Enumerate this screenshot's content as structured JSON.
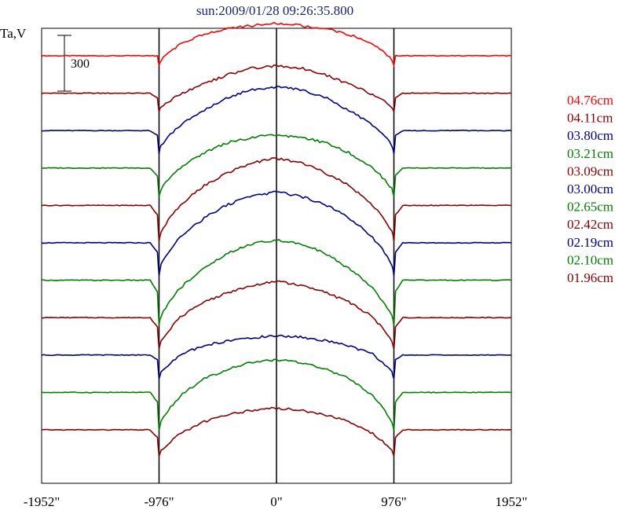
{
  "chart_data": {
    "type": "line",
    "title": "sun:2009/01/28 09:26:35.800",
    "ylabel": "Ta,V",
    "xlabel": "",
    "x_ticks": [
      "-1952\"",
      "-976\"",
      "0\"",
      "976\"",
      "1952\""
    ],
    "x_tick_values": [
      -1952,
      -976,
      0,
      976,
      1952
    ],
    "xlim": [
      -1952,
      1952
    ],
    "vertical_lines_at": [
      -976,
      0,
      976
    ],
    "scale_bar": {
      "label": "300",
      "value": 300,
      "units": "V"
    },
    "legend_position": "right",
    "series": [
      {
        "name": "04.76cm",
        "color": "#ff0000",
        "offset_y": 22,
        "x": [
          -1952,
          -1050,
          -990,
          -976,
          -960,
          -800,
          -600,
          -400,
          -200,
          0,
          200,
          400,
          600,
          800,
          960,
          976,
          990,
          1050,
          1952
        ],
        "values": [
          0,
          0,
          0,
          -10,
          -8,
          2,
          8,
          12,
          14,
          16,
          14,
          12,
          8,
          2,
          -8,
          -10,
          0,
          0,
          0
        ]
      },
      {
        "name": "04.11cm",
        "color": "#8b0000",
        "offset_y": 18,
        "x": [
          -1952,
          -1050,
          -990,
          -976,
          -960,
          -800,
          -600,
          -400,
          -200,
          0,
          200,
          400,
          600,
          800,
          960,
          976,
          990,
          1050,
          1952
        ],
        "values": [
          0,
          0,
          -5,
          -20,
          -18,
          -10,
          -2,
          6,
          12,
          14,
          12,
          6,
          -2,
          -10,
          -18,
          -20,
          -5,
          0,
          0
        ]
      },
      {
        "name": "03.80cm",
        "color": "#00008b",
        "offset_y": 36,
        "x": [
          -1952,
          -1050,
          -990,
          -976,
          -960,
          -800,
          -600,
          -400,
          -200,
          0,
          200,
          400,
          600,
          800,
          960,
          976,
          990,
          1050,
          1952
        ],
        "values": [
          0,
          0,
          -5,
          -25,
          -22,
          -12,
          -2,
          8,
          14,
          16,
          14,
          8,
          -2,
          -12,
          -22,
          -25,
          -5,
          0,
          0
        ]
      },
      {
        "name": "03.21cm",
        "color": "#008000",
        "offset_y": 25,
        "x": [
          -1952,
          -1050,
          -990,
          -976,
          -960,
          -800,
          -600,
          -400,
          -200,
          0,
          200,
          400,
          600,
          800,
          960,
          976,
          990,
          1050,
          1952
        ],
        "values": [
          0,
          0,
          -8,
          -30,
          -26,
          -12,
          0,
          8,
          12,
          14,
          12,
          8,
          0,
          -12,
          -26,
          -30,
          -8,
          0,
          0
        ]
      },
      {
        "name": "03.09cm",
        "color": "#8b0000",
        "offset_y": 38,
        "x": [
          -1952,
          -1050,
          -990,
          -976,
          -960,
          -800,
          -600,
          -400,
          -200,
          0,
          200,
          400,
          600,
          800,
          960,
          976,
          990,
          1050,
          1952
        ],
        "values": [
          0,
          0,
          -10,
          -38,
          -34,
          -18,
          -4,
          6,
          14,
          18,
          14,
          6,
          -4,
          -18,
          -34,
          -38,
          -10,
          0,
          0
        ]
      },
      {
        "name": "03.00cm",
        "color": "#00008b",
        "offset_y": 43,
        "x": [
          -1952,
          -1050,
          -990,
          -976,
          -960,
          -800,
          -600,
          -400,
          -200,
          0,
          200,
          400,
          600,
          800,
          960,
          976,
          990,
          1050,
          1952
        ],
        "values": [
          0,
          0,
          -10,
          -35,
          -30,
          -15,
          -2,
          8,
          14,
          18,
          14,
          8,
          -2,
          -15,
          -30,
          -35,
          -10,
          0,
          0
        ]
      },
      {
        "name": "02.65cm",
        "color": "#008000",
        "offset_y": 25,
        "x": [
          -1952,
          -1050,
          -990,
          -976,
          -960,
          -800,
          -600,
          -400,
          -200,
          0,
          200,
          400,
          600,
          800,
          960,
          976,
          990,
          1050,
          1952
        ],
        "values": [
          0,
          0,
          -12,
          -48,
          -42,
          -20,
          -4,
          10,
          18,
          22,
          18,
          10,
          -4,
          -20,
          -42,
          -48,
          -12,
          0,
          0
        ]
      },
      {
        "name": "02.42cm",
        "color": "#8b0000",
        "offset_y": 22,
        "x": [
          -1952,
          -1050,
          -990,
          -976,
          -960,
          -800,
          -600,
          -400,
          -200,
          0,
          200,
          400,
          600,
          800,
          960,
          976,
          990,
          1050,
          1952
        ],
        "values": [
          0,
          0,
          -10,
          -33,
          -28,
          -10,
          2,
          10,
          16,
          20,
          16,
          10,
          2,
          -10,
          -28,
          -33,
          -10,
          0,
          0
        ]
      },
      {
        "name": "02.19cm",
        "color": "#00008b",
        "offset_y": 12,
        "x": [
          -1952,
          -1050,
          -990,
          -976,
          -960,
          -800,
          -600,
          -400,
          -200,
          0,
          200,
          400,
          600,
          800,
          960,
          976,
          990,
          1050,
          1952
        ],
        "values": [
          0,
          0,
          -5,
          -25,
          -20,
          -5,
          2,
          6,
          9,
          10,
          9,
          6,
          2,
          -5,
          -20,
          -25,
          -5,
          0,
          0
        ]
      },
      {
        "name": "02.10cm",
        "color": "#008000",
        "offset_y": 22,
        "x": [
          -1952,
          -1050,
          -990,
          -976,
          -960,
          -800,
          -600,
          -400,
          -200,
          0,
          200,
          400,
          600,
          800,
          960,
          976,
          990,
          1050,
          1952
        ],
        "values": [
          0,
          0,
          -10,
          -40,
          -34,
          -14,
          0,
          8,
          14,
          16,
          14,
          8,
          0,
          -14,
          -34,
          -40,
          -10,
          0,
          0
        ]
      },
      {
        "name": "01.96cm",
        "color": "#8b0000",
        "offset_y": 13,
        "x": [
          -1952,
          -1050,
          -990,
          -976,
          -960,
          -800,
          -600,
          -400,
          -200,
          0,
          200,
          400,
          600,
          800,
          960,
          976,
          990,
          1050,
          1952
        ],
        "values": [
          0,
          0,
          -8,
          -28,
          -24,
          -10,
          0,
          6,
          10,
          12,
          10,
          6,
          0,
          -10,
          -24,
          -28,
          -8,
          0,
          0
        ]
      }
    ]
  }
}
